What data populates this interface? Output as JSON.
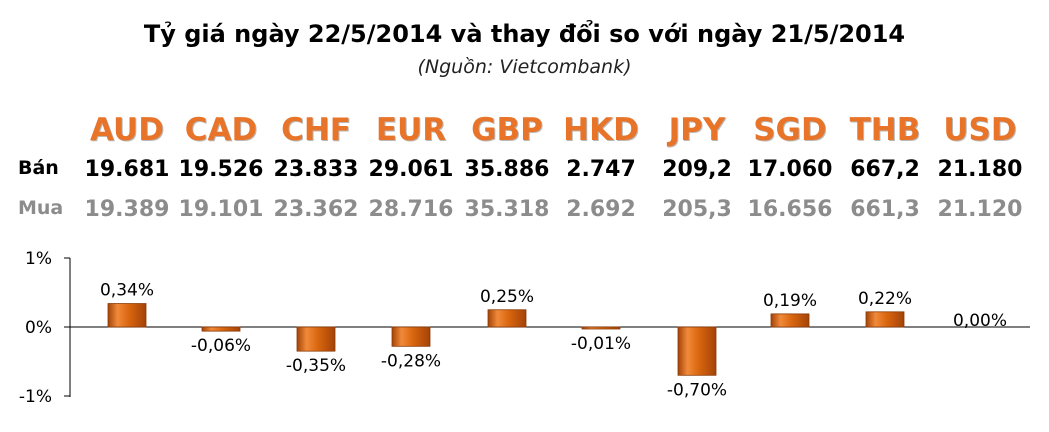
{
  "title": "Tỷ giá ngày 22/5/2014 và thay đổi so với ngày 21/5/2014",
  "source": "(Nguồn: Vietcombank)",
  "row_labels": {
    "sell": "Bán",
    "buy": "Mua"
  },
  "currencies": [
    "AUD",
    "CAD",
    "CHF",
    "EUR",
    "GBP",
    "HKD",
    "JPY",
    "SGD",
    "THB",
    "USD"
  ],
  "sell": [
    "19.681",
    "19.526",
    "23.833",
    "29.061",
    "35.886",
    "2.747",
    "209,2",
    "17.060",
    "667,2",
    "21.180"
  ],
  "buy": [
    "19.389",
    "19.101",
    "23.362",
    "28.716",
    "35.318",
    "2.692",
    "205,3",
    "16.656",
    "661,3",
    "21.120"
  ],
  "colors": {
    "accent": "#e8742a",
    "bar": "#d9660f",
    "buy_text": "#8c8c8c"
  },
  "chart_data": {
    "type": "bar",
    "categories": [
      "AUD",
      "CAD",
      "CHF",
      "EUR",
      "GBP",
      "HKD",
      "JPY",
      "SGD",
      "THB",
      "USD"
    ],
    "values": [
      0.34,
      -0.06,
      -0.35,
      -0.28,
      0.25,
      -0.01,
      -0.7,
      0.19,
      0.22,
      0.0
    ],
    "value_labels": [
      "0,34%",
      "-0,06%",
      "-0,35%",
      "-0,28%",
      "0,25%",
      "-0,01%",
      "-0,70%",
      "0,19%",
      "0,22%",
      "0,00%"
    ],
    "ylim": [
      -1,
      1
    ],
    "yticks": [
      1,
      0,
      -1
    ],
    "ytick_labels": [
      "1%",
      "0%",
      "-1%"
    ],
    "grid": false
  }
}
